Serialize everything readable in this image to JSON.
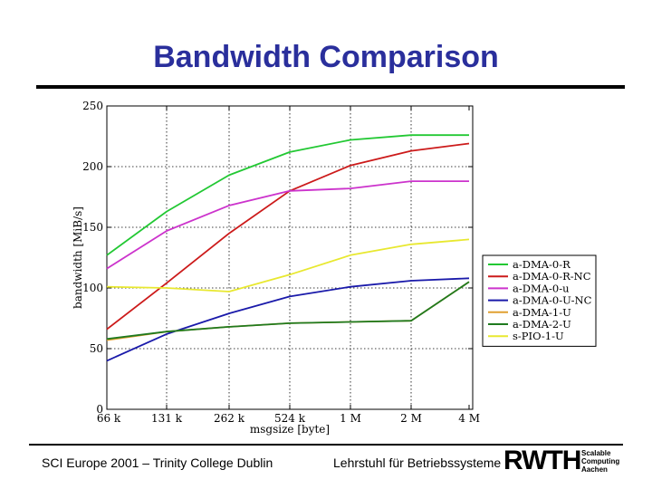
{
  "slide": {
    "title": "Bandwidth Comparison",
    "footer_left": "SCI Europe 2001 – Trinity College Dublin",
    "footer_right": "Lehrstuhl für Betriebssysteme",
    "logo_main": "RWTH",
    "logo_sub": [
      "Scalable",
      "Computing",
      "Aachen"
    ]
  },
  "chart_data": {
    "type": "line",
    "title": "",
    "xlabel": "msgsize [byte]",
    "ylabel": "bandwidth [MiB/s]",
    "categories": [
      "66 k",
      "131 k",
      "262 k",
      "524 k",
      "1 M",
      "2 M",
      "4 M"
    ],
    "ylim": [
      0,
      250
    ],
    "yticks": [
      0,
      50,
      100,
      150,
      200,
      250
    ],
    "grid": true,
    "legend_position": "right",
    "series": [
      {
        "name": "a-DMA-0-R",
        "color": "#22c833",
        "values": [
          127,
          163,
          193,
          212,
          222,
          226,
          226
        ]
      },
      {
        "name": "a-DMA-0-R-NC",
        "color": "#cc1a1a",
        "values": [
          66,
          104,
          145,
          180,
          201,
          213,
          219
        ]
      },
      {
        "name": "a-DMA-0-u",
        "color": "#cc33cc",
        "values": [
          116,
          147,
          168,
          180,
          182,
          188,
          188
        ]
      },
      {
        "name": "a-DMA-0-U-NC",
        "color": "#1a1aaa",
        "values": [
          40,
          62,
          79,
          93,
          101,
          106,
          108
        ]
      },
      {
        "name": "a-DMA-1-U",
        "color": "#e0a030",
        "values": [
          57,
          64,
          68,
          71,
          72,
          73,
          105
        ]
      },
      {
        "name": "a-DMA-2-U",
        "color": "#1f7a1f",
        "values": [
          58,
          64,
          68,
          71,
          72,
          73,
          105
        ]
      },
      {
        "name": "s-PIO-1-U",
        "color": "#e8e830",
        "values": [
          101,
          100,
          97,
          111,
          127,
          136,
          140
        ]
      }
    ]
  }
}
